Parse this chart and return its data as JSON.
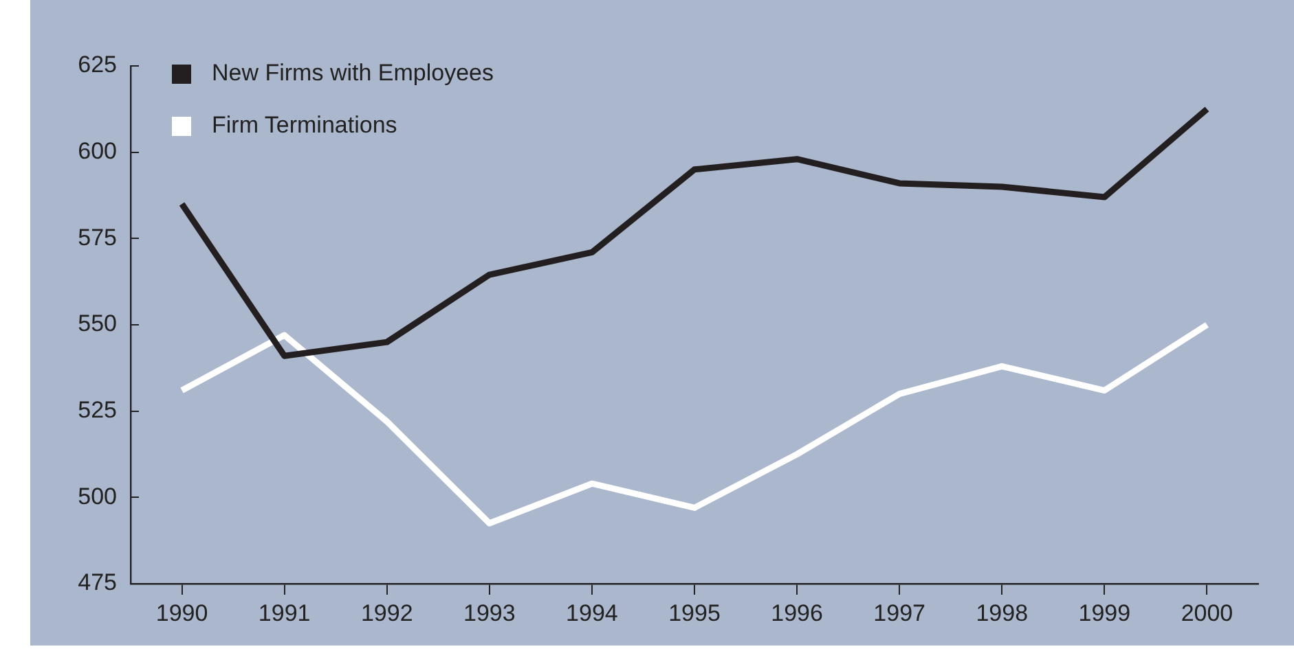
{
  "chart_data": {
    "type": "line",
    "categories": [
      "1990",
      "1991",
      "1992",
      "1993",
      "1994",
      "1995",
      "1996",
      "1997",
      "1998",
      "1999",
      "2000"
    ],
    "series": [
      {
        "name": "New Firms with Employees",
        "color": "#231f20",
        "values": [
          585,
          541,
          545,
          564.5,
          571,
          595,
          598,
          591,
          590,
          587,
          612.5
        ]
      },
      {
        "name": "Firm Terminations",
        "color": "#ffffff",
        "values": [
          531,
          547,
          522,
          492.5,
          504,
          497,
          512.5,
          530,
          538,
          531,
          550
        ]
      }
    ],
    "ylim": [
      475,
      625
    ],
    "yticks": [
      475,
      500,
      525,
      550,
      575,
      600,
      625
    ],
    "grid": false,
    "legend": "top left",
    "marker": "none",
    "line_style": "solid"
  }
}
